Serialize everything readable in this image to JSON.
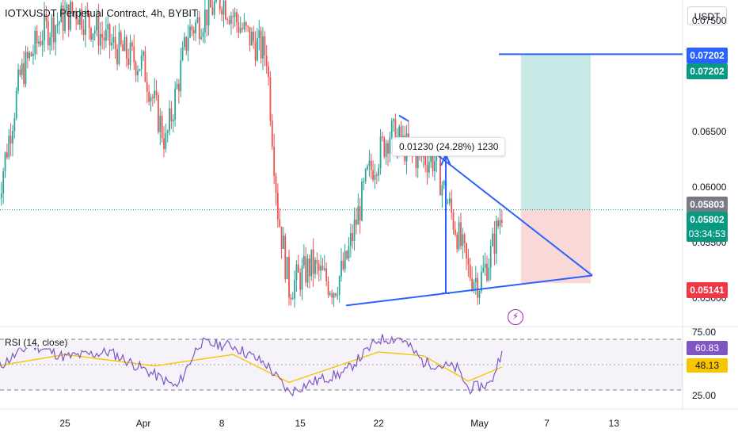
{
  "header": {
    "title": "IOTXUSDT Perpetual Contract, 4h, BYBIT",
    "currency_button": "USDT"
  },
  "price_tags": {
    "target_top": "0.07202",
    "target_bottom": "0.07202",
    "last_price": "0.05803",
    "current_price": "0.05802",
    "countdown": "03:34:53",
    "stop": "0.05141"
  },
  "rsi": {
    "label": "RSI (14, close)",
    "value_tag": "60.83",
    "ma_tag": "48.13"
  },
  "measure_tool": {
    "text": "0.01230 (24.28%) 1230"
  },
  "icons": {
    "alert": "lightning-icon"
  },
  "colors": {
    "up": "#26a69a",
    "down": "#ef5350",
    "trendline": "#2962ff",
    "rsi_line": "#7e57c2",
    "rsi_ma": "#f7c600",
    "target_zone": "#b2dfdb",
    "stop_zone": "#f8c8c8"
  },
  "chart_data": [
    {
      "type": "candlestick",
      "title": "IOTXUSDT Perpetual Contract, 4h, BYBIT",
      "y_axis": {
        "range": [
          0.0475,
          0.0769
        ],
        "ticks": [
          "0.07500",
          "0.07000",
          "0.06500",
          "0.06000",
          "0.05500",
          "0.05000"
        ]
      },
      "x_axis": {
        "ticks": [
          "25",
          "Apr",
          "8",
          "15",
          "22",
          "May",
          "7",
          "13"
        ]
      },
      "series": [
        {
          "values": [
            {
              "x": "Mar 19",
              "y": 0.059
            },
            {
              "x": "Mar 21",
              "y": 0.07
            },
            {
              "x": "Mar 23",
              "y": 0.074
            },
            {
              "x": "Mar 26",
              "y": 0.076
            },
            {
              "x": "Mar 29",
              "y": 0.073
            },
            {
              "x": "Apr 1",
              "y": 0.071
            },
            {
              "x": "Apr 3",
              "y": 0.064
            },
            {
              "x": "Apr 5",
              "y": 0.074
            },
            {
              "x": "Apr 8",
              "y": 0.077
            },
            {
              "x": "Apr 10",
              "y": 0.074
            },
            {
              "x": "Apr 12",
              "y": 0.072
            },
            {
              "x": "Apr 13",
              "y": 0.058
            },
            {
              "x": "Apr 14",
              "y": 0.051
            },
            {
              "x": "Apr 16",
              "y": 0.053
            },
            {
              "x": "Apr 18",
              "y": 0.051
            },
            {
              "x": "Apr 19",
              "y": 0.053
            },
            {
              "x": "Apr 21",
              "y": 0.061
            },
            {
              "x": "Apr 23",
              "y": 0.065
            },
            {
              "x": "Apr 25",
              "y": 0.063
            },
            {
              "x": "Apr 27",
              "y": 0.0625
            },
            {
              "x": "Apr 29",
              "y": 0.056
            },
            {
              "x": "Apr 30",
              "y": 0.0525
            },
            {
              "x": "May 1",
              "y": 0.0515
            },
            {
              "x": "May 2",
              "y": 0.054
            },
            {
              "x": "May 3",
              "y": 0.058
            }
          ]
        }
      ]
    },
    {
      "type": "line",
      "title": "RSI (14, close)",
      "y_axis": {
        "range": [
          15,
          80
        ],
        "ticks": [
          "75.00",
          "25.00"
        ],
        "bands": [
          70,
          30
        ]
      },
      "series": [
        {
          "name": "RSI (14, close)",
          "values": [
            {
              "x": "Mar 19",
              "y": 48
            },
            {
              "x": "Mar 22",
              "y": 66
            },
            {
              "x": "Mar 25",
              "y": 56
            },
            {
              "x": "Mar 29",
              "y": 60
            },
            {
              "x": "Apr 2",
              "y": 42
            },
            {
              "x": "Apr 4",
              "y": 32
            },
            {
              "x": "Apr 6",
              "y": 67
            },
            {
              "x": "Apr 9",
              "y": 65
            },
            {
              "x": "Apr 12",
              "y": 50
            },
            {
              "x": "Apr 14",
              "y": 28
            },
            {
              "x": "Apr 16",
              "y": 36
            },
            {
              "x": "Apr 19",
              "y": 44
            },
            {
              "x": "Apr 22",
              "y": 70
            },
            {
              "x": "Apr 24",
              "y": 71
            },
            {
              "x": "Apr 26",
              "y": 52
            },
            {
              "x": "Apr 29",
              "y": 47
            },
            {
              "x": "Apr 30",
              "y": 31
            },
            {
              "x": "May 2",
              "y": 35
            },
            {
              "x": "May 3",
              "y": 60.83
            }
          ]
        },
        {
          "name": "MA",
          "values": [
            {
              "x": "Mar 19",
              "y": 49
            },
            {
              "x": "Mar 25",
              "y": 58
            },
            {
              "x": "Apr 2",
              "y": 49
            },
            {
              "x": "Apr 9",
              "y": 58
            },
            {
              "x": "Apr 14",
              "y": 36
            },
            {
              "x": "Apr 22",
              "y": 60
            },
            {
              "x": "Apr 26",
              "y": 57
            },
            {
              "x": "Apr 30",
              "y": 37
            },
            {
              "x": "May 3",
              "y": 48.13
            }
          ]
        }
      ]
    }
  ]
}
